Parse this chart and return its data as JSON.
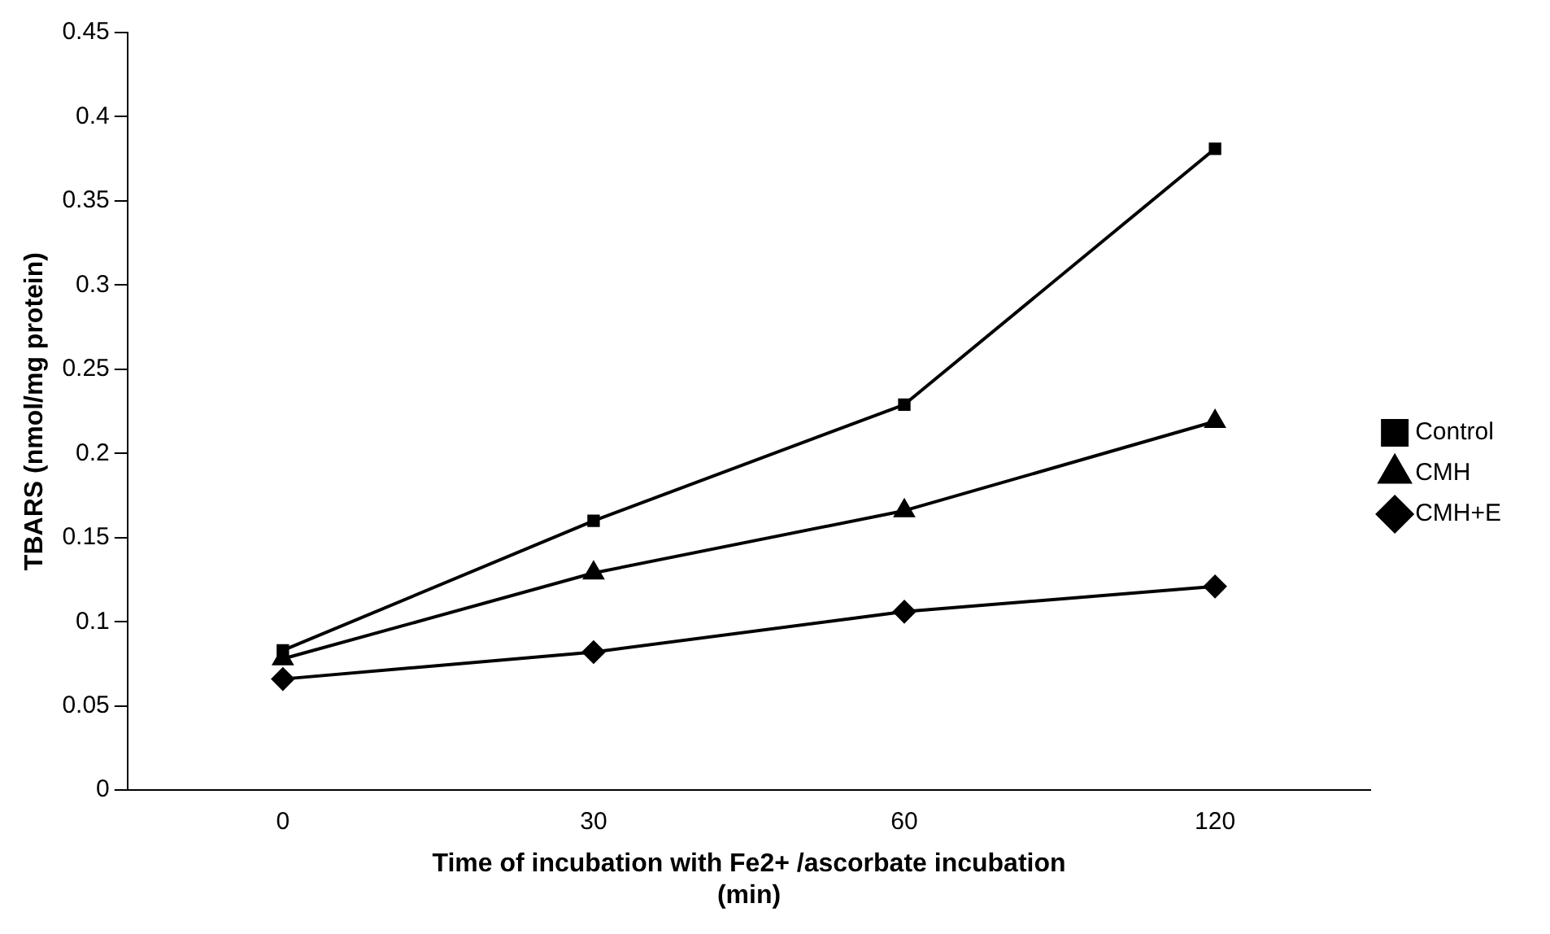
{
  "chart_data": {
    "type": "line",
    "xlabel": "Time of incubation with Fe2+ /ascorbate incubation\n(min)",
    "ylabel": "TBARS (nmol/mg protein)",
    "categories": [
      "0",
      "30",
      "60",
      "120"
    ],
    "series": [
      {
        "name": "Control",
        "color": "#000000",
        "marker": "square",
        "values": [
          0.083,
          0.16,
          0.229,
          0.381
        ]
      },
      {
        "name": "CMH",
        "color": "#000000",
        "marker": "triangle",
        "values": [
          0.078,
          0.129,
          0.166,
          0.219
        ]
      },
      {
        "name": "CMH+E",
        "color": "#000000",
        "marker": "diamond",
        "values": [
          0.066,
          0.082,
          0.106,
          0.121
        ]
      }
    ],
    "ylim": [
      0,
      0.45
    ],
    "yticks": [
      0,
      0.05,
      0.1,
      0.15,
      0.2,
      0.25,
      0.3,
      0.35,
      0.4,
      0.45
    ],
    "grid": false,
    "legend": "right",
    "line_style": "solid"
  }
}
